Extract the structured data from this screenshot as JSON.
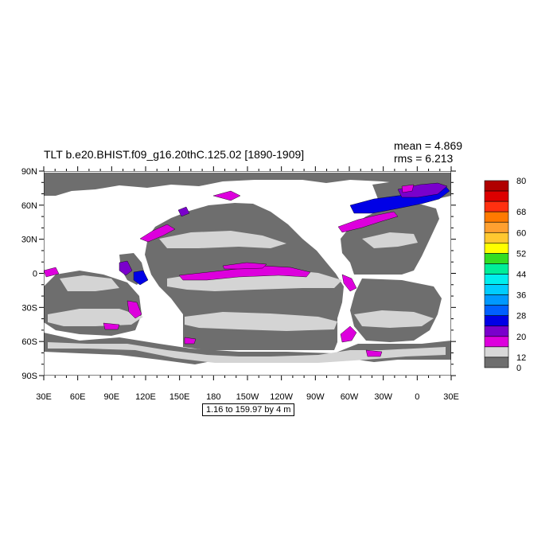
{
  "title": "TLT b.e20.BHIST.f09_g16.20thC.125.02 [1890-1909]",
  "stats": {
    "mean_label": "mean",
    "mean_value": "4.869",
    "rms_label": "rms",
    "rms_value": "6.213"
  },
  "range_text": "1.16 to 159.97 by 4 m",
  "axes": {
    "lat_labels": [
      "90N",
      "60N",
      "30N",
      "0",
      "30S",
      "60S",
      "90S"
    ],
    "lon_labels": [
      "30E",
      "60E",
      "90E",
      "120E",
      "150E",
      "180",
      "150W",
      "120W",
      "90W",
      "60W",
      "30W",
      "0",
      "30E"
    ]
  },
  "colorbar": {
    "labels": [
      "80",
      "68",
      "60",
      "52",
      "44",
      "36",
      "28",
      "20",
      "12",
      "0"
    ],
    "colors": [
      "#b00000",
      "#dd0000",
      "#ff3010",
      "#ff7a00",
      "#ffa030",
      "#ffc830",
      "#ffff00",
      "#33dd22",
      "#00ee99",
      "#00eeee",
      "#00ccff",
      "#0099ff",
      "#0060ff",
      "#0000e6",
      "#7a00cc",
      "#dd00dd",
      "#d8d8d8",
      "#6e6e6e"
    ]
  },
  "map_colors": {
    "ocean_dark": "#6e6e6e",
    "ocean_light": "#d4d4d4",
    "land": "#ffffff",
    "magenta": "#dd00dd",
    "purple": "#7a00cc",
    "blue": "#0000e6",
    "light_blue": "#0099ff"
  }
}
